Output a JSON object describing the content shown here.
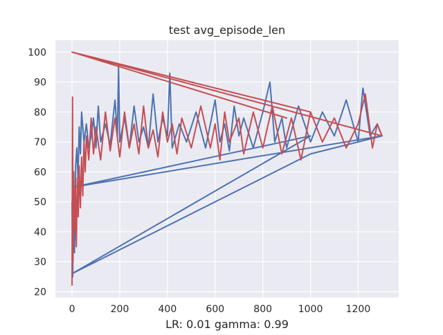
{
  "chart_data": {
    "type": "line",
    "title": "test avg_episode_len",
    "xlabel": "LR: 0.01 gamma: 0.99",
    "ylabel": "",
    "xlim": [
      -70,
      1370
    ],
    "ylim": [
      18,
      104
    ],
    "xticks": [
      0,
      200,
      400,
      600,
      800,
      1000,
      1200
    ],
    "yticks": [
      20,
      30,
      40,
      50,
      60,
      70,
      80,
      90,
      100
    ],
    "grid": true,
    "legend": "none",
    "background": "#eaeaf2",
    "series": [
      {
        "color": "#4c72b0",
        "points": [
          [
            0,
            50
          ],
          [
            3,
            25
          ],
          [
            6,
            60
          ],
          [
            10,
            33
          ],
          [
            15,
            62
          ],
          [
            20,
            68
          ],
          [
            25,
            58
          ],
          [
            30,
            75
          ],
          [
            35,
            66
          ],
          [
            40,
            80
          ],
          [
            50,
            70
          ],
          [
            60,
            76
          ],
          [
            70,
            68
          ],
          [
            80,
            72
          ],
          [
            90,
            78
          ],
          [
            100,
            68
          ],
          [
            110,
            82
          ],
          [
            120,
            70
          ],
          [
            140,
            76
          ],
          [
            160,
            69
          ],
          [
            180,
            84
          ],
          [
            190,
            72
          ],
          [
            195,
            96
          ],
          [
            200,
            70
          ],
          [
            220,
            78
          ],
          [
            240,
            68
          ],
          [
            260,
            82
          ],
          [
            280,
            70
          ],
          [
            300,
            75
          ],
          [
            320,
            68
          ],
          [
            340,
            86
          ],
          [
            360,
            70
          ],
          [
            380,
            78
          ],
          [
            400,
            72
          ],
          [
            410,
            93
          ],
          [
            420,
            68
          ],
          [
            450,
            76
          ],
          [
            480,
            70
          ],
          [
            520,
            80
          ],
          [
            560,
            68
          ],
          [
            600,
            84
          ],
          [
            620,
            70
          ],
          [
            640,
            76
          ],
          [
            660,
            67
          ],
          [
            680,
            82
          ],
          [
            700,
            72
          ],
          [
            720,
            78
          ],
          [
            760,
            68
          ],
          [
            800,
            80
          ],
          [
            830,
            90
          ],
          [
            850,
            70
          ],
          [
            880,
            78
          ],
          [
            900,
            68
          ],
          [
            950,
            82
          ],
          [
            1000,
            70
          ],
          [
            1050,
            80
          ],
          [
            1100,
            72
          ],
          [
            1150,
            84
          ],
          [
            1200,
            70
          ],
          [
            1220,
            88
          ],
          [
            1250,
            72
          ],
          [
            1280,
            76
          ],
          [
            1300,
            72
          ],
          [
            10,
            55
          ],
          [
            1000,
            72
          ],
          [
            0,
            26
          ],
          [
            1000,
            66
          ],
          [
            1300,
            72
          ]
        ]
      },
      {
        "color": "#c44e52",
        "points": [
          [
            0,
            22
          ],
          [
            2,
            85
          ],
          [
            4,
            30
          ],
          [
            7,
            60
          ],
          [
            10,
            40
          ],
          [
            14,
            55
          ],
          [
            18,
            35
          ],
          [
            22,
            58
          ],
          [
            26,
            45
          ],
          [
            30,
            62
          ],
          [
            35,
            48
          ],
          [
            40,
            65
          ],
          [
            45,
            52
          ],
          [
            50,
            70
          ],
          [
            55,
            60
          ],
          [
            60,
            72
          ],
          [
            70,
            64
          ],
          [
            80,
            78
          ],
          [
            90,
            66
          ],
          [
            100,
            75
          ],
          [
            120,
            64
          ],
          [
            140,
            80
          ],
          [
            160,
            67
          ],
          [
            180,
            78
          ],
          [
            200,
            65
          ],
          [
            220,
            80
          ],
          [
            240,
            68
          ],
          [
            260,
            76
          ],
          [
            280,
            66
          ],
          [
            300,
            82
          ],
          [
            320,
            68
          ],
          [
            340,
            74
          ],
          [
            360,
            65
          ],
          [
            380,
            80
          ],
          [
            400,
            70
          ],
          [
            420,
            76
          ],
          [
            440,
            66
          ],
          [
            460,
            78
          ],
          [
            500,
            68
          ],
          [
            540,
            82
          ],
          [
            580,
            68
          ],
          [
            600,
            76
          ],
          [
            620,
            64
          ],
          [
            640,
            80
          ],
          [
            660,
            70
          ],
          [
            700,
            78
          ],
          [
            720,
            66
          ],
          [
            760,
            80
          ],
          [
            800,
            68
          ],
          [
            840,
            82
          ],
          [
            880,
            66
          ],
          [
            920,
            78
          ],
          [
            960,
            64
          ],
          [
            1000,
            80
          ],
          [
            1050,
            70
          ],
          [
            1100,
            78
          ],
          [
            1150,
            68
          ],
          [
            1200,
            76
          ],
          [
            1230,
            86
          ],
          [
            1260,
            68
          ],
          [
            1280,
            76
          ],
          [
            1300,
            72
          ],
          [
            0,
            100
          ],
          [
            1300,
            72
          ],
          [
            0,
            100
          ],
          [
            900,
            78
          ],
          [
            0,
            100
          ],
          [
            1000,
            80
          ]
        ]
      }
    ]
  }
}
